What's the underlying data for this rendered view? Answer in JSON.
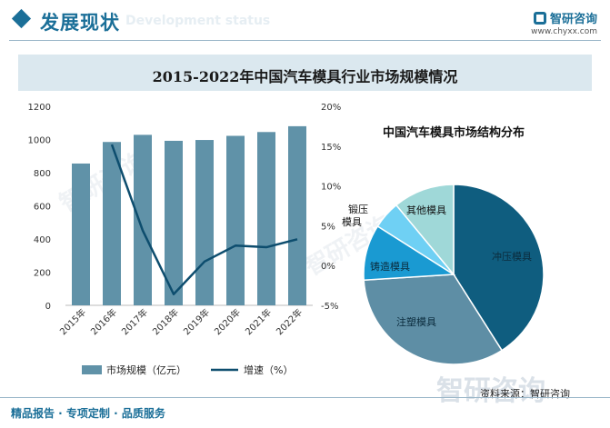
{
  "header": {
    "title": "发展现状",
    "subtitle": "Development status",
    "brand_name": "智研咨询",
    "brand_url": "www.chyxx.com"
  },
  "watermark": "智研咨询",
  "chart_title": "2015-2022年中国汽车模具行业市场规模情况",
  "footer": {
    "left_text": "精品报告 · 专项定制 · 品质服务",
    "source": "资料来源：智研咨询"
  },
  "chart_data": [
    {
      "type": "bar",
      "categories": [
        "2015年",
        "2016年",
        "2017年",
        "2018年",
        "2019年",
        "2020年",
        "2021年",
        "2022年"
      ],
      "series": [
        {
          "name": "市场规模（亿元）",
          "type": "bar",
          "axis": "left",
          "color": "#6092a8",
          "values": [
            855,
            985,
            1028,
            992,
            997,
            1022,
            1045,
            1080
          ]
        },
        {
          "name": "增速（%）",
          "type": "line",
          "axis": "right",
          "color": "#0d4d6e",
          "values": [
            null,
            15.2,
            4.4,
            -3.6,
            0.5,
            2.5,
            2.3,
            3.3
          ]
        }
      ],
      "y_left": {
        "min": 0,
        "max": 1200,
        "ticks": [
          "0",
          "200",
          "400",
          "600",
          "800",
          "1000",
          "1200"
        ]
      },
      "y_right": {
        "min": -5,
        "max": 20,
        "ticks": [
          "-5%",
          "0%",
          "5%",
          "10%",
          "15%",
          "20%"
        ]
      },
      "grid": false,
      "legend": "bottom"
    },
    {
      "type": "pie",
      "title": "中国汽车模具市场结构分布",
      "slices": [
        {
          "label": "冲压模具",
          "value": 41,
          "color": "#0f5d7f"
        },
        {
          "label": "注塑模具",
          "value": 33,
          "color": "#5e8ea5"
        },
        {
          "label": "铸造模具",
          "value": 10,
          "color": "#1a9ad2"
        },
        {
          "label": "锻压模具",
          "value": 5,
          "color": "#6fd0f4"
        },
        {
          "label": "其他模具",
          "value": 11,
          "color": "#9fd8d8"
        }
      ]
    }
  ]
}
